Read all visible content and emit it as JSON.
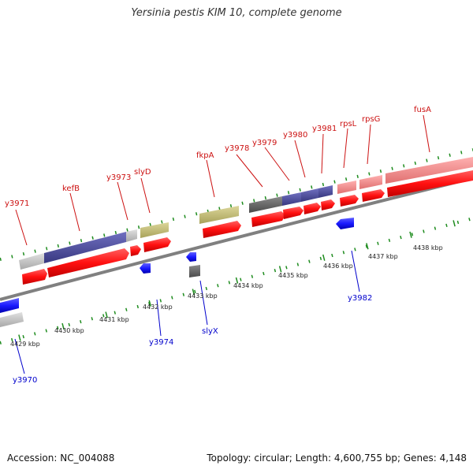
{
  "title": "Yersinia pestis KIM 10, complete genome",
  "footer": {
    "accession": "Accession: NC_004088",
    "topology": "Topology: circular; Length: 4,600,755 bp; Genes: 4,148"
  },
  "colors": {
    "backbone": "#808080",
    "tick": "#1e8c1e",
    "cds": "#ff1010",
    "label_forward": "#cc1111",
    "label_reverse": "#0000cc",
    "reverse_cds": "#1a1aff",
    "gene_grey": "#bcbcbc",
    "gene_purple": "#4a4a9a",
    "gene_olive": "#c3bc72",
    "gene_darkgrey": "#666666",
    "gene_pink": "#f08c8c"
  },
  "scale_labels": [
    "4429 kbp",
    "4430 kbp",
    "4431 kbp",
    "4432 kbp",
    "4433 kbp",
    "4434 kbp",
    "4435 kbp",
    "4436 kbp",
    "4437 kbp",
    "4438 kbp"
  ],
  "forward_labels": [
    "y3971",
    "kefB",
    "y3973",
    "slyD",
    "fkpA",
    "y3978",
    "y3979",
    "y3980",
    "y3981",
    "rpsL",
    "rpsG",
    "fusA"
  ],
  "reverse_labels": [
    "y3970",
    "y3974",
    "slyX",
    "y3982"
  ]
}
